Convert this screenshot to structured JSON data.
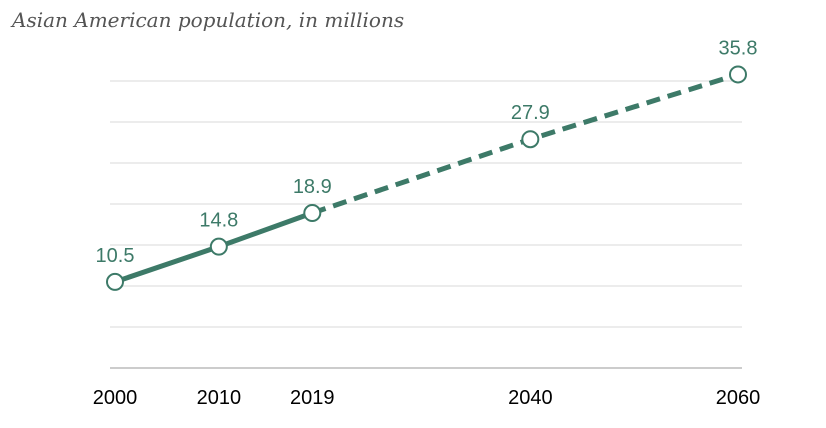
{
  "chart_data": {
    "type": "line",
    "title": "Asian American population, in millions",
    "x": [
      2000,
      2010,
      2019,
      2040,
      2060
    ],
    "x_tick_labels": [
      "2000",
      "2010",
      "2019",
      "2040",
      "2060"
    ],
    "series": [
      {
        "values": [
          10.5,
          14.8,
          18.9,
          27.9,
          35.8
        ],
        "data_labels": [
          "10.5",
          "14.8",
          "18.9",
          "27.9",
          "35.8"
        ],
        "solid_through": 2019,
        "dashed_after": 2019
      }
    ],
    "xlim": [
      2000,
      2060
    ],
    "ylim": [
      0,
      40
    ],
    "grid": true,
    "color": "#3d7a68"
  }
}
